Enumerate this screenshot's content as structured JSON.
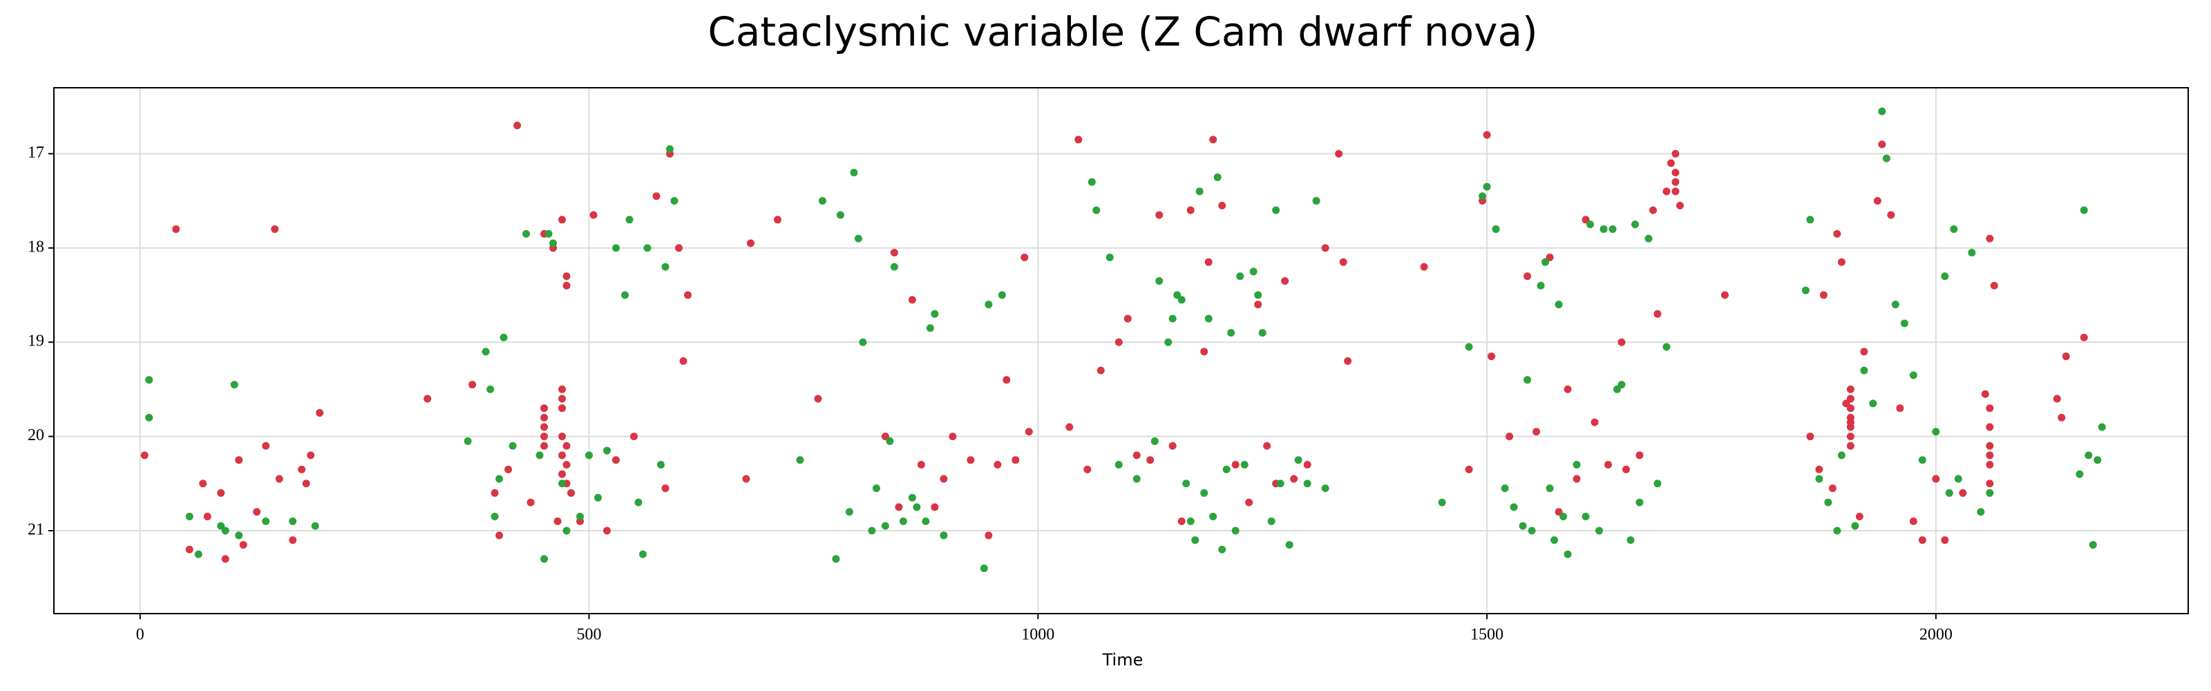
{
  "chart_data": {
    "type": "scatter",
    "title": "Cataclysmic variable (Z Cam dwarf nova)",
    "xlabel": "Time",
    "xlim": [
      -96,
      2281
    ],
    "ylim": [
      21.88,
      16.3
    ],
    "xticks": [
      0,
      500,
      1000,
      1500,
      2000
    ],
    "yticks": [
      17,
      18,
      19,
      20,
      21
    ],
    "grid": true,
    "series": [
      {
        "color": "#d93545",
        "x": [
          5,
          40,
          55,
          70,
          75,
          90,
          95,
          110,
          115,
          130,
          140,
          150,
          155,
          170,
          180,
          185,
          190,
          200,
          320,
          370,
          395,
          400,
          410,
          420,
          435,
          450,
          460,
          465,
          470,
          475,
          480,
          490,
          505,
          520,
          530,
          550,
          575,
          585,
          590,
          600,
          605,
          610,
          675,
          680,
          710,
          755,
          830,
          840,
          845,
          860,
          870,
          885,
          895,
          905,
          925,
          945,
          955,
          965,
          975,
          985,
          990,
          1035,
          1045,
          1055,
          1070,
          1090,
          1100,
          1110,
          1125,
          1135,
          1150,
          1160,
          1170,
          1185,
          1190,
          1195,
          1205,
          1220,
          1235,
          1245,
          1255,
          1265,
          1275,
          1285,
          1300,
          1310,
          1320,
          1335,
          1340,
          1345,
          1430,
          1480,
          1495,
          1500,
          1505,
          1525,
          1545,
          1555,
          1570,
          1580,
          1590,
          1600,
          1610,
          1620,
          1635,
          1650,
          1655,
          1670,
          1685,
          1690,
          1700,
          1705,
          1710,
          1715,
          1765,
          1860,
          1870,
          1875,
          1885,
          1890,
          1895,
          1900,
          1905,
          1915,
          1920,
          1935,
          1940,
          1950,
          1960,
          1975,
          1985,
          2000,
          2010,
          2030,
          2055,
          2060,
          2065,
          2060,
          2135,
          2140,
          2145,
          2165,
          450,
          450,
          450,
          450,
          450,
          470,
          470,
          470,
          470,
          470,
          470,
          475,
          475,
          475,
          475,
          1905,
          1905,
          1905,
          1905,
          1905,
          1905,
          1905,
          1710,
          1710,
          1710,
          2060,
          2060,
          2060,
          2060,
          2060
        ],
        "values": [
          20.2,
          17.8,
          21.2,
          20.5,
          20.85,
          20.6,
          21.3,
          20.25,
          21.15,
          20.8,
          20.1,
          17.8,
          20.45,
          21.1,
          20.35,
          20.5,
          20.2,
          19.75,
          19.6,
          19.45,
          20.6,
          21.05,
          20.35,
          16.7,
          20.7,
          17.85,
          18.0,
          20.9,
          17.7,
          18.3,
          20.6,
          20.9,
          17.65,
          21.0,
          20.25,
          20.0,
          17.45,
          20.55,
          17.0,
          18.0,
          19.2,
          18.5,
          20.45,
          17.95,
          17.7,
          19.6,
          20.0,
          18.05,
          20.75,
          18.55,
          20.3,
          20.75,
          20.45,
          20.0,
          20.25,
          21.05,
          20.3,
          19.4,
          20.25,
          18.1,
          19.95,
          19.9,
          16.85,
          20.35,
          19.3,
          19.0,
          18.75,
          20.2,
          20.25,
          17.65,
          20.1,
          20.9,
          17.6,
          19.1,
          18.15,
          16.85,
          17.55,
          20.3,
          20.7,
          18.6,
          20.1,
          20.5,
          18.35,
          20.45,
          20.3,
          17.5,
          18.0,
          17.0,
          18.15,
          19.2,
          18.2,
          20.35,
          17.5,
          16.8,
          19.15,
          20.0,
          18.3,
          19.95,
          18.1,
          20.8,
          19.5,
          20.45,
          17.7,
          19.85,
          20.3,
          19.0,
          20.35,
          20.2,
          17.6,
          18.7,
          17.4,
          17.1,
          17.0,
          17.55,
          18.5,
          20.0,
          20.35,
          18.5,
          20.55,
          17.85,
          18.15,
          19.65,
          19.85,
          20.85,
          19.1,
          17.5,
          16.9,
          17.65,
          19.7,
          20.9,
          21.1,
          20.45,
          21.1,
          20.6,
          19.55,
          20.2,
          18.4,
          17.9,
          19.6,
          19.8,
          19.15,
          18.95,
          19.7,
          19.8,
          19.9,
          20.0,
          20.1,
          19.5,
          19.6,
          19.7,
          20.0,
          20.2,
          20.4,
          20.1,
          20.3,
          20.5,
          18.4,
          19.5,
          19.6,
          19.7,
          19.8,
          19.9,
          20.0,
          20.1,
          17.2,
          17.3,
          17.4,
          19.7,
          19.9,
          20.1,
          20.3,
          20.5
        ]
      },
      {
        "color": "#2ca33c",
        "x": [
          10,
          10,
          55,
          65,
          90,
          95,
          105,
          110,
          140,
          170,
          195,
          365,
          385,
          390,
          395,
          400,
          405,
          415,
          430,
          445,
          450,
          455,
          460,
          470,
          475,
          490,
          500,
          510,
          520,
          530,
          540,
          545,
          555,
          560,
          565,
          580,
          585,
          590,
          595,
          735,
          760,
          775,
          780,
          790,
          795,
          800,
          805,
          815,
          820,
          830,
          835,
          840,
          850,
          860,
          865,
          875,
          880,
          885,
          895,
          940,
          945,
          960,
          1060,
          1065,
          1080,
          1090,
          1110,
          1130,
          1135,
          1145,
          1150,
          1155,
          1160,
          1165,
          1170,
          1175,
          1180,
          1185,
          1190,
          1195,
          1200,
          1205,
          1210,
          1215,
          1220,
          1225,
          1230,
          1240,
          1245,
          1250,
          1260,
          1265,
          1270,
          1280,
          1290,
          1300,
          1310,
          1320,
          1450,
          1480,
          1495,
          1500,
          1510,
          1520,
          1530,
          1540,
          1545,
          1550,
          1560,
          1565,
          1570,
          1575,
          1580,
          1585,
          1590,
          1600,
          1610,
          1615,
          1625,
          1630,
          1640,
          1645,
          1650,
          1660,
          1665,
          1670,
          1680,
          1690,
          1700,
          1855,
          1860,
          1870,
          1880,
          1890,
          1895,
          1910,
          1920,
          1930,
          1940,
          1945,
          1955,
          1965,
          1975,
          1985,
          2000,
          2010,
          2015,
          2020,
          2025,
          2040,
          2050,
          2060,
          2160,
          2165,
          2170,
          2175,
          2180,
          2185
        ],
        "values": [
          19.4,
          19.8,
          20.85,
          21.25,
          20.95,
          21.0,
          19.45,
          21.05,
          20.9,
          20.9,
          20.95,
          20.05,
          19.1,
          19.5,
          20.85,
          20.45,
          18.95,
          20.1,
          17.85,
          20.2,
          21.3,
          17.85,
          17.95,
          20.5,
          21.0,
          20.85,
          20.2,
          20.65,
          20.15,
          18.0,
          18.5,
          17.7,
          20.7,
          21.25,
          18.0,
          20.3,
          18.2,
          16.95,
          17.5,
          20.25,
          17.5,
          21.3,
          17.65,
          20.8,
          17.2,
          17.9,
          19.0,
          21.0,
          20.55,
          20.95,
          20.05,
          18.2,
          20.9,
          20.65,
          20.75,
          20.9,
          18.85,
          18.7,
          21.05,
          21.4,
          18.6,
          18.5,
          17.3,
          17.6,
          18.1,
          20.3,
          20.45,
          20.05,
          18.35,
          19.0,
          18.75,
          18.5,
          18.55,
          20.5,
          20.9,
          21.1,
          17.4,
          20.6,
          18.75,
          20.85,
          17.25,
          21.2,
          20.35,
          18.9,
          21.0,
          18.3,
          20.3,
          18.25,
          18.5,
          18.9,
          20.9,
          17.6,
          20.5,
          21.15,
          20.25,
          20.5,
          17.5,
          20.55,
          20.7,
          19.05,
          17.45,
          17.35,
          17.8,
          20.55,
          20.75,
          20.95,
          19.4,
          21.0,
          18.4,
          18.15,
          20.55,
          21.1,
          18.6,
          20.85,
          21.25,
          20.3,
          20.85,
          17.75,
          21.0,
          17.8,
          17.8,
          19.5,
          19.45,
          21.1,
          17.75,
          20.7,
          17.9,
          20.5,
          19.05,
          18.45,
          17.7,
          20.45,
          20.7,
          21.0,
          20.2,
          20.95,
          19.3,
          19.65,
          16.55,
          17.05,
          18.6,
          18.8,
          19.35,
          20.25,
          19.95,
          18.3,
          20.6,
          17.8,
          20.45,
          18.05,
          20.8,
          20.6,
          20.4,
          17.6,
          20.2,
          21.15,
          20.25,
          19.9
        ]
      }
    ]
  }
}
